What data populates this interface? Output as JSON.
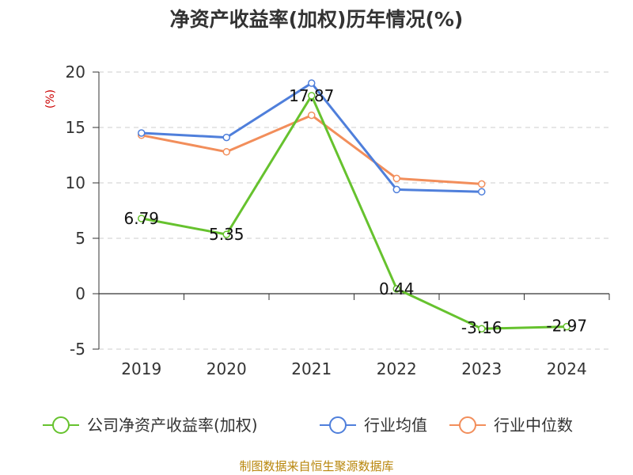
{
  "chart_data": {
    "type": "line",
    "title": "净资产收益率(加权)历年情况(%)",
    "ylabel": "(%)",
    "categories": [
      "2019",
      "2020",
      "2021",
      "2022",
      "2023",
      "2024"
    ],
    "ylim": [
      -5,
      20
    ],
    "yticks": [
      -5,
      0,
      5,
      10,
      15,
      20
    ],
    "grid": true,
    "legend_position": "bottom",
    "series": [
      {
        "name": "公司净资产收益率(加权)",
        "color": "#66c22e",
        "values": [
          6.79,
          5.35,
          17.87,
          0.44,
          -3.16,
          -2.97
        ],
        "labels": [
          "6.79",
          "5.35",
          "17.87",
          "0.44",
          "-3.16",
          "-2.97"
        ]
      },
      {
        "name": "行业均值",
        "color": "#4f7fdb",
        "values": [
          14.5,
          14.1,
          19.0,
          9.4,
          9.2,
          null
        ]
      },
      {
        "name": "行业中位数",
        "color": "#f28e5b",
        "values": [
          14.3,
          12.8,
          16.1,
          10.4,
          9.9,
          null
        ]
      }
    ]
  },
  "source": "制图数据来自恒生聚源数据库"
}
